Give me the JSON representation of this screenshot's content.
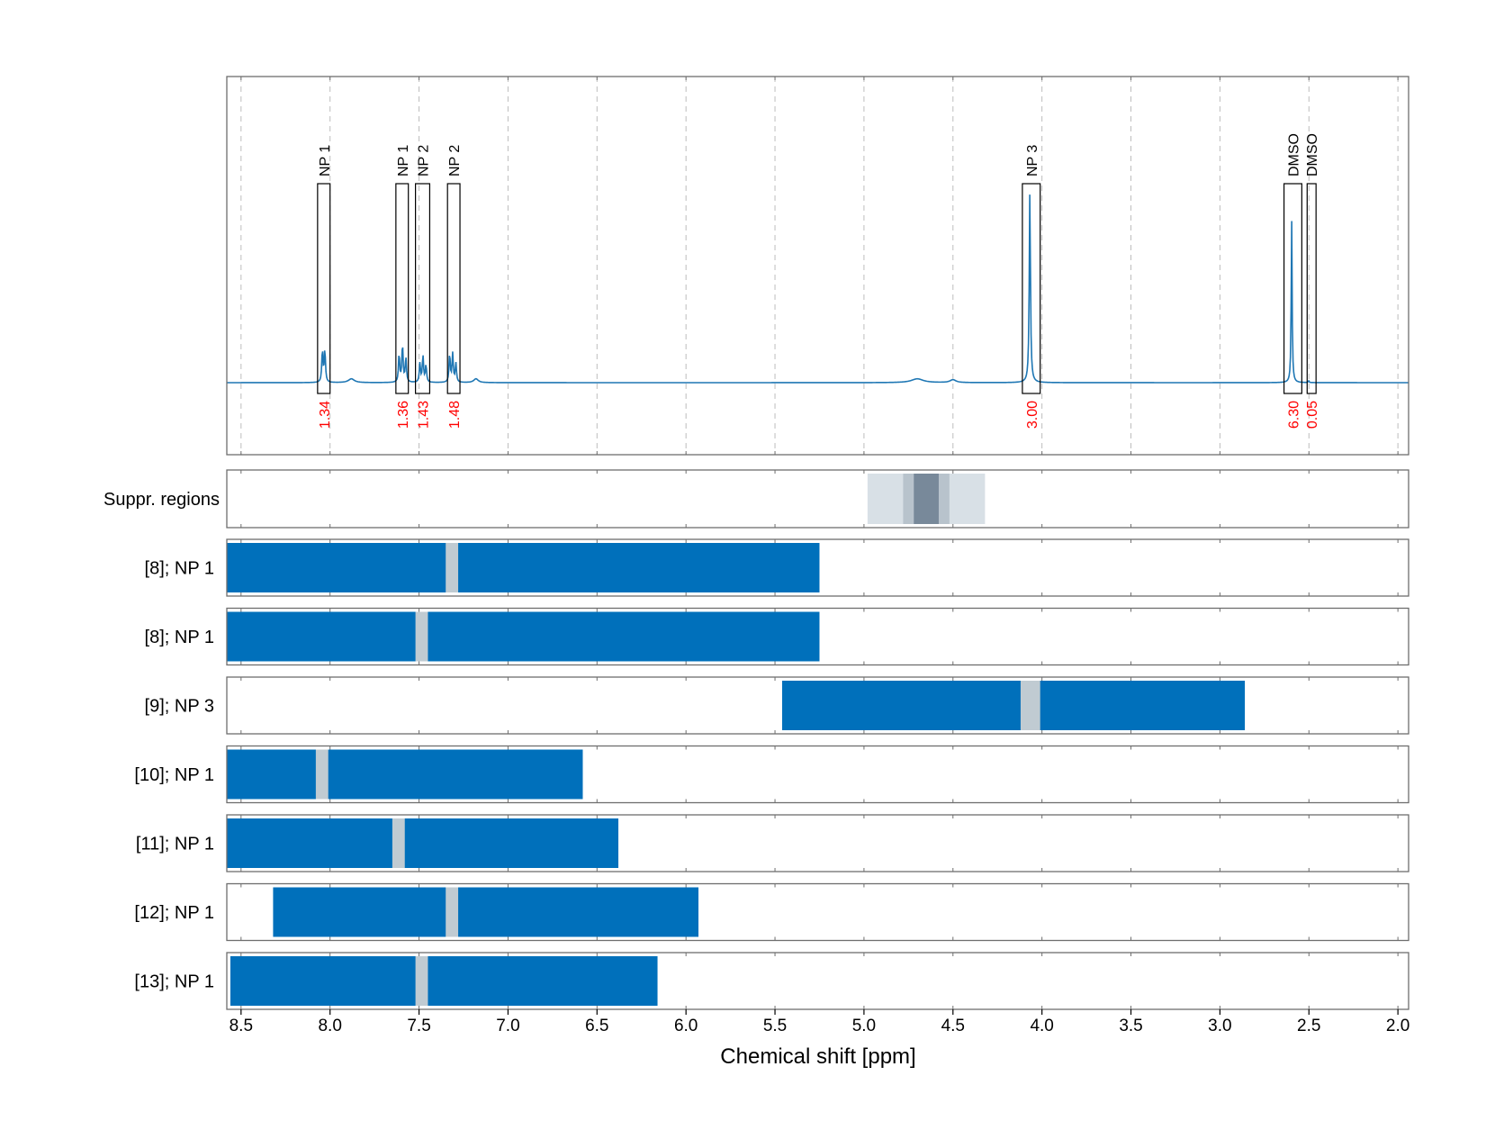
{
  "chart_data": {
    "type": "line",
    "xlabel": "Chemical shift [ppm]",
    "xlim": [
      8.58,
      1.94
    ],
    "x_reversed": true,
    "x_ticks": [
      8.5,
      8.0,
      7.5,
      7.0,
      6.5,
      6.0,
      5.5,
      5.0,
      4.5,
      4.0,
      3.5,
      3.0,
      2.5,
      2.0
    ],
    "x_tick_labels": [
      "8.5",
      "8.0",
      "7.5",
      "7.0",
      "6.5",
      "6.0",
      "5.5",
      "5.0",
      "4.5",
      "4.0",
      "3.5",
      "3.0",
      "2.5",
      "2.0"
    ],
    "colors": {
      "spectrum": "#1f77b4",
      "bar": "#0070bb",
      "signal_gap": "#c0cbd2",
      "suppression_light": "#d8e0e6",
      "suppression_mid": "#b8c3cc",
      "suppression_dark": "#78899a",
      "integral_label": "#ff0000"
    },
    "spectrum": {
      "baseline": 0.0,
      "peaks": [
        {
          "center": 8.043,
          "height": 0.17,
          "width": 0.004
        },
        {
          "center": 8.029,
          "height": 0.17,
          "width": 0.004
        },
        {
          "center": 7.88,
          "height": 0.02,
          "width": 0.02
        },
        {
          "center": 7.612,
          "height": 0.15,
          "width": 0.004
        },
        {
          "center": 7.593,
          "height": 0.2,
          "width": 0.004
        },
        {
          "center": 7.574,
          "height": 0.13,
          "width": 0.004
        },
        {
          "center": 7.495,
          "height": 0.1,
          "width": 0.004
        },
        {
          "center": 7.478,
          "height": 0.14,
          "width": 0.004
        },
        {
          "center": 7.461,
          "height": 0.09,
          "width": 0.004
        },
        {
          "center": 7.328,
          "height": 0.15,
          "width": 0.004
        },
        {
          "center": 7.311,
          "height": 0.15,
          "width": 0.004
        },
        {
          "center": 7.293,
          "height": 0.1,
          "width": 0.004
        },
        {
          "center": 7.18,
          "height": 0.02,
          "width": 0.015
        },
        {
          "center": 4.7,
          "height": 0.02,
          "width": 0.04
        },
        {
          "center": 4.5,
          "height": 0.015,
          "width": 0.02
        },
        {
          "center": 4.068,
          "height": 1.0,
          "width": 0.004
        },
        {
          "center": 2.597,
          "height": 0.86,
          "width": 0.003
        },
        {
          "center": 2.502,
          "height": 0.01,
          "width": 0.003
        }
      ],
      "annotations": [
        {
          "label": "NP 1",
          "range": [
            8.07,
            8.0
          ],
          "integral": "1.34"
        },
        {
          "label": "NP 1",
          "range": [
            7.63,
            7.56
          ],
          "integral": "1.36"
        },
        {
          "label": "NP 2",
          "range": [
            7.52,
            7.44
          ],
          "integral": "1.43"
        },
        {
          "label": "NP 2",
          "range": [
            7.34,
            7.27
          ],
          "integral": "1.48"
        },
        {
          "label": "NP 3",
          "range": [
            4.11,
            4.01
          ],
          "integral": "3.00"
        },
        {
          "label": "DMSO",
          "range": [
            2.64,
            2.54
          ],
          "integral": "6.30"
        },
        {
          "label": "DMSO",
          "range": [
            2.51,
            2.46
          ],
          "integral": "0.05"
        }
      ]
    },
    "suppression": {
      "label": "Suppr. regions",
      "regions": [
        {
          "range": [
            4.98,
            4.32
          ],
          "level": "light"
        },
        {
          "range": [
            4.78,
            4.52
          ],
          "level": "mid"
        },
        {
          "range": [
            4.72,
            4.58
          ],
          "level": "dark"
        }
      ]
    },
    "bars": [
      {
        "label": "[8]; NP 1",
        "range": [
          8.58,
          5.25
        ],
        "gap": [
          7.35,
          7.28
        ]
      },
      {
        "label": "[8]; NP 1",
        "range": [
          8.58,
          5.25
        ],
        "gap": [
          7.52,
          7.45
        ]
      },
      {
        "label": "[9]; NP 3",
        "range": [
          5.46,
          2.86
        ],
        "gap": [
          4.12,
          4.01
        ]
      },
      {
        "label": "[10]; NP 1",
        "range": [
          8.58,
          6.58
        ],
        "gap": [
          8.08,
          8.01
        ]
      },
      {
        "label": "[11]; NP 1",
        "range": [
          8.58,
          6.38
        ],
        "gap": [
          7.65,
          7.58
        ]
      },
      {
        "label": "[12]; NP 1",
        "range": [
          8.32,
          5.93
        ],
        "gap": [
          7.35,
          7.28
        ]
      },
      {
        "label": "[13]; NP 1",
        "range": [
          8.56,
          6.16
        ],
        "gap": [
          7.52,
          7.45
        ]
      }
    ]
  }
}
